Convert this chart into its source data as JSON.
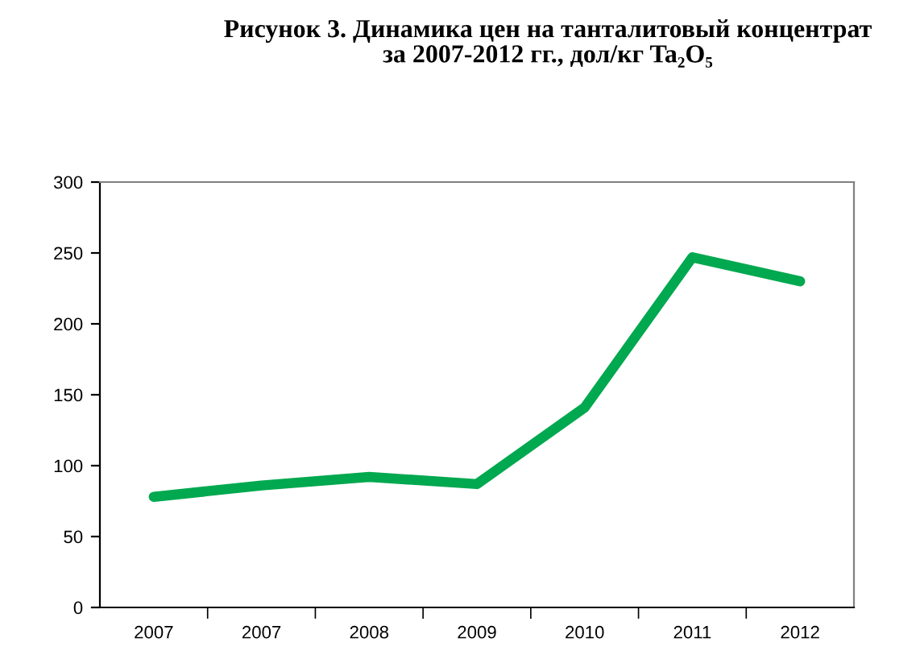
{
  "chart_data": {
    "type": "line",
    "title": "Рисунок 3. Динамика цен на танталитовый концентрат\nза 2007-2012 гг., дол/кг Ta₂O₅",
    "categories": [
      "2007",
      "2007",
      "2008",
      "2009",
      "2010",
      "2011",
      "2012"
    ],
    "series": [
      {
        "color": "#00a84f",
        "values": [
          78,
          86,
          92,
          87,
          141,
          247,
          230
        ]
      }
    ],
    "ylim": [
      0,
      300
    ],
    "yticks": [
      0,
      50,
      100,
      150,
      200,
      250,
      300
    ],
    "grid": false,
    "legend": false,
    "marker": "none",
    "line_style": "solid"
  }
}
